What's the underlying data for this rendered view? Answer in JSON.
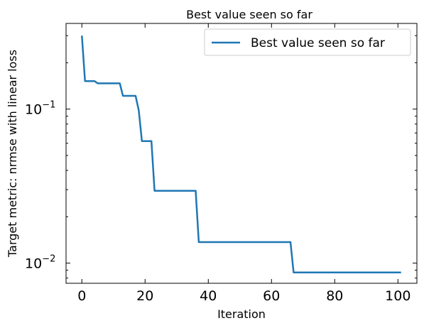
{
  "chart_data": {
    "type": "line",
    "title": "Best value seen so far",
    "xlabel": "Iteration",
    "ylabel": "Target metric: nrmse with linear loss",
    "xlim": [
      -5,
      106
    ],
    "ylim": [
      0.0074,
      0.36
    ],
    "yscale": "log",
    "grid": false,
    "legend_position": "top-right",
    "x_ticks": [
      0,
      20,
      40,
      60,
      80,
      100
    ],
    "y_major_ticks": [
      {
        "value": 0.1,
        "base": "10",
        "exp": "−1"
      },
      {
        "value": 0.01,
        "base": "10",
        "exp": "−2"
      }
    ],
    "series": [
      {
        "name": "Best value seen so far",
        "color": "#1f77b4",
        "x": [
          0,
          1,
          4,
          5,
          12,
          13,
          17,
          18,
          19,
          22,
          23,
          36,
          37,
          66,
          67,
          101
        ],
        "y": [
          0.3,
          0.152,
          0.152,
          0.147,
          0.147,
          0.122,
          0.122,
          0.098,
          0.062,
          0.062,
          0.0295,
          0.0295,
          0.0137,
          0.0137,
          0.0087,
          0.0087
        ]
      }
    ]
  }
}
